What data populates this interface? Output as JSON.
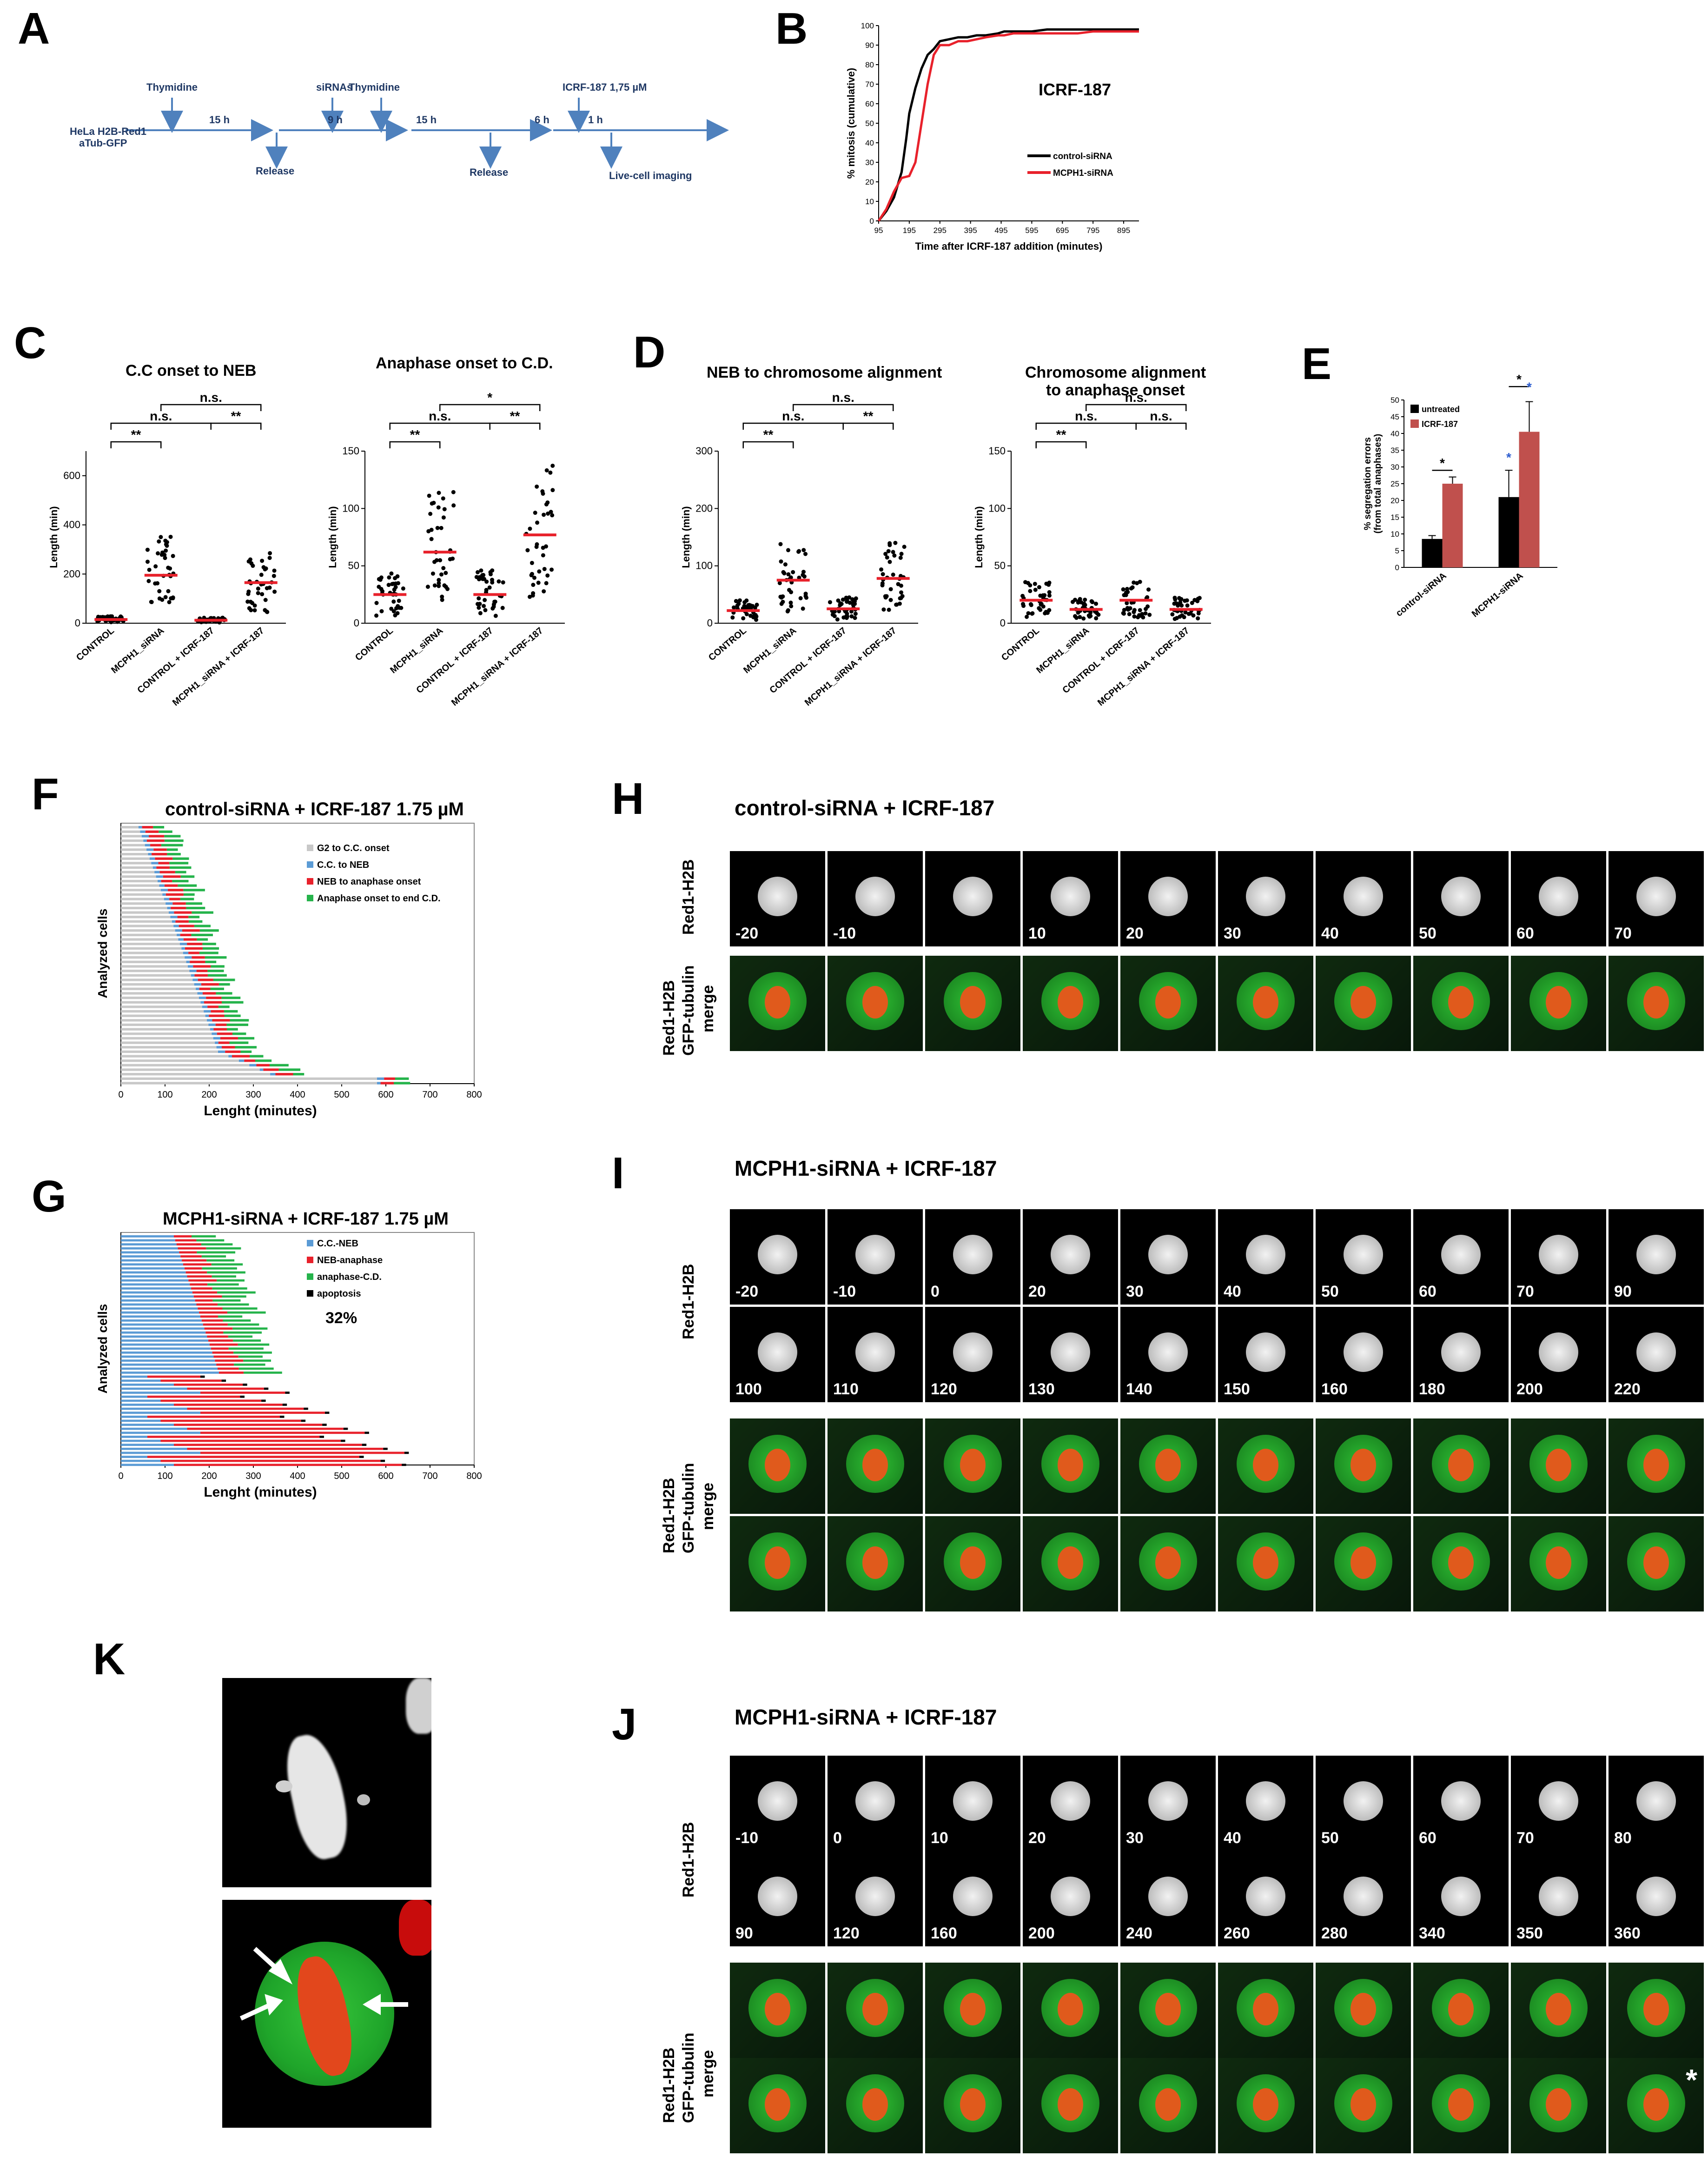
{
  "panel_labels": {
    "A": "A",
    "B": "B",
    "C": "C",
    "D": "D",
    "E": "E",
    "F": "F",
    "G": "G",
    "H": "H",
    "I": "I",
    "J": "J",
    "K": "K"
  },
  "panelA": {
    "cells": "HeLa H2B-Red1",
    "cells2": "aTub-GFP",
    "thymidine1": "Thymidine",
    "h15a": "15 h",
    "release1": "Release",
    "sirnas": "siRNAs",
    "h9": "9 h",
    "thymidine2": "Thymidine",
    "h15b": "15 h",
    "release2": "Release",
    "h6": "6 h",
    "icrf": "ICRF-187 1,75 µM",
    "h1": "1 h",
    "imaging": "Live-cell imaging"
  },
  "panelC": {
    "title1": "C.C onset to NEB",
    "title2": "Anaphase onset to C.D.",
    "ylabel": "Length (min)",
    "sig_ns": "n.s.",
    "sig_1": "*",
    "sig_2": "**"
  },
  "panelD": {
    "title1": "NEB to chromosome alignment",
    "title2": "Chromosome alignment",
    "title2b": "to anaphase onset",
    "ylabel": "Length (min)"
  },
  "panelE": {
    "ylabel": "% segregation errors",
    "ylabel2": "(from total anaphases)"
  },
  "panelF": {
    "title": "control-siRNA + ICRF-187 1.75 µM",
    "ylabel": "Analyzed cells",
    "xlabel": "Lenght (minutes)",
    "legend": [
      "G2 to C.C. onset",
      "C.C. to NEB",
      "NEB to anaphase onset",
      "Anaphase onset to end C.D."
    ]
  },
  "panelG": {
    "title": "MCPH1-siRNA + ICRF-187 1.75 µM",
    "ylabel": "Analyzed cells",
    "xlabel": "Lenght (minutes)",
    "legend": [
      "C.C.-NEB",
      "NEB-anaphase",
      "anaphase-C.D.",
      "apoptosis"
    ],
    "percent": "32%"
  },
  "panelH": {
    "title": "control-siRNA + ICRF-187",
    "row1": "Red1-H2B",
    "row2a": "Red1-H2B",
    "row2b": "GFP-tubulin",
    "row2c": "merge",
    "times": [
      "-20",
      "-10",
      "",
      "10",
      "20",
      "30",
      "40",
      "50",
      "60",
      "70"
    ]
  },
  "panelI": {
    "title": "MCPH1-siRNA + ICRF-187",
    "row1": "Red1-H2B",
    "row2a": "Red1-H2B",
    "row2b": "GFP-tubulin",
    "row2c": "merge",
    "times1": [
      "-20",
      "-10",
      "0",
      "20",
      "30",
      "40",
      "50",
      "60",
      "70",
      "90"
    ],
    "times2": [
      "100",
      "110",
      "120",
      "130",
      "140",
      "150",
      "160",
      "180",
      "200",
      "220"
    ]
  },
  "panelJ": {
    "title": "MCPH1-siRNA + ICRF-187",
    "row1": "Red1-H2B",
    "row2a": "Red1-H2B",
    "row2b": "GFP-tubulin",
    "row2c": "merge",
    "times1": [
      "-10",
      "0",
      "10",
      "20",
      "30",
      "40",
      "50",
      "60",
      "70",
      "80"
    ],
    "times2": [
      "90",
      "120",
      "160",
      "200",
      "240",
      "260",
      "280",
      "340",
      "350",
      "360"
    ],
    "asterisk": "*"
  },
  "colors": {
    "red": "#e8212b",
    "black": "#000000",
    "blue": "#5b9bd5",
    "green": "#25b34b",
    "grey": "#c8c8c8",
    "bar_red": "#c0504d",
    "arrow_blue": "#4f81bd"
  },
  "chart_data": [
    {
      "id": "B",
      "type": "line",
      "title": "ICRF-187",
      "xlabel": "Time after ICRF-187 addition (minutes)",
      "ylabel": "% mitosis (cumulative)",
      "xticks": [
        95,
        195,
        295,
        395,
        495,
        595,
        695,
        795,
        895
      ],
      "yticks": [
        0,
        10,
        20,
        30,
        40,
        50,
        60,
        70,
        80,
        90,
        100
      ],
      "xlim": [
        95,
        945
      ],
      "ylim": [
        0,
        100
      ],
      "series": [
        {
          "name": "control-siRNA",
          "color": "#000000",
          "x": [
            95,
            120,
            145,
            170,
            185,
            195,
            215,
            235,
            255,
            275,
            295,
            325,
            355,
            385,
            415,
            445,
            485,
            505,
            535,
            595,
            645,
            695,
            745,
            795,
            845,
            895,
            945
          ],
          "y": [
            0,
            5,
            12,
            25,
            42,
            55,
            68,
            78,
            85,
            88,
            92,
            93,
            94,
            94,
            95,
            95,
            96,
            97,
            97,
            97,
            98,
            98,
            98,
            98,
            98,
            98,
            98
          ]
        },
        {
          "name": "MCPH1-siRNA",
          "color": "#e8212b",
          "x": [
            95,
            120,
            145,
            170,
            195,
            215,
            235,
            255,
            275,
            295,
            325,
            355,
            385,
            415,
            445,
            485,
            505,
            535,
            595,
            645,
            695,
            745,
            795,
            845,
            895,
            945
          ],
          "y": [
            0,
            6,
            15,
            22,
            23,
            30,
            50,
            70,
            85,
            90,
            90,
            92,
            92,
            93,
            94,
            95,
            95,
            96,
            96,
            96,
            96,
            96,
            97,
            97,
            97,
            97
          ]
        }
      ]
    },
    {
      "id": "C1",
      "type": "scatter",
      "title": "C.C onset to NEB",
      "ylabel": "Length (min)",
      "categories": [
        "CONTROL",
        "MCPH1_siRNA",
        "CONTROL + ICRF-187",
        "MCPH1_siRNA + ICRF-187"
      ],
      "yticks": [
        0,
        200,
        400,
        600
      ],
      "ylim": [
        0,
        700
      ],
      "medians": [
        15,
        195,
        12,
        165
      ],
      "significance": [
        {
          "from": 0,
          "to": 1,
          "label": "**"
        },
        {
          "from": 0,
          "to": 2,
          "label": "n.s."
        },
        {
          "from": 1,
          "to": 3,
          "label": "n.s."
        },
        {
          "from": 2,
          "to": 3,
          "label": "**"
        }
      ]
    },
    {
      "id": "C2",
      "type": "scatter",
      "title": "Anaphase onset to C.D.",
      "ylabel": "Length (min)",
      "categories": [
        "CONTROL",
        "MCPH1_siRNA",
        "CONTROL + ICRF-187",
        "MCPH1_siRNA + ICRF-187"
      ],
      "yticks": [
        0,
        50,
        100,
        150
      ],
      "ylim": [
        0,
        150
      ],
      "medians": [
        25,
        62,
        25,
        77
      ],
      "significance": [
        {
          "from": 0,
          "to": 1,
          "label": "**"
        },
        {
          "from": 0,
          "to": 2,
          "label": "n.s."
        },
        {
          "from": 1,
          "to": 3,
          "label": "*"
        },
        {
          "from": 2,
          "to": 3,
          "label": "**"
        }
      ]
    },
    {
      "id": "D1",
      "type": "scatter",
      "title": "NEB to chromosome alignment",
      "ylabel": "Length (min)",
      "categories": [
        "CONTROL",
        "MCPH1_siRNA",
        "CONTROL + ICRF-187",
        "MCPH1_siRNA + ICRF-187"
      ],
      "yticks": [
        0,
        100,
        200,
        300
      ],
      "ylim": [
        0,
        300
      ],
      "medians": [
        22,
        75,
        25,
        78
      ],
      "significance": [
        {
          "from": 0,
          "to": 1,
          "label": "**"
        },
        {
          "from": 0,
          "to": 2,
          "label": "n.s."
        },
        {
          "from": 1,
          "to": 3,
          "label": "n.s."
        },
        {
          "from": 2,
          "to": 3,
          "label": "**"
        }
      ]
    },
    {
      "id": "D2",
      "type": "scatter",
      "title": "Chromosome alignment to anaphase onset",
      "ylabel": "Length (min)",
      "categories": [
        "CONTROL",
        "MCPH1_siRNA",
        "CONTROL + ICRF-187",
        "MCPH1_siRNA + ICRF-187"
      ],
      "yticks": [
        0,
        50,
        100,
        150
      ],
      "ylim": [
        0,
        150
      ],
      "medians": [
        20,
        12,
        20,
        12
      ],
      "significance": [
        {
          "from": 0,
          "to": 1,
          "label": "**"
        },
        {
          "from": 0,
          "to": 2,
          "label": "n.s."
        },
        {
          "from": 1,
          "to": 3,
          "label": "n.s."
        },
        {
          "from": 2,
          "to": 3,
          "label": "n.s."
        }
      ]
    },
    {
      "id": "E",
      "type": "bar",
      "ylabel": "% segregation errors (from total anaphases)",
      "categories": [
        "control-siRNA",
        "MCPH1-siRNA"
      ],
      "yticks": [
        0,
        5,
        10,
        15,
        20,
        25,
        30,
        35,
        40,
        45,
        50
      ],
      "ylim": [
        0,
        50
      ],
      "series": [
        {
          "name": "untreated",
          "color": "#000000",
          "values": [
            8.5,
            21
          ],
          "errors": [
            1,
            8
          ]
        },
        {
          "name": "ICRF-187",
          "color": "#c0504d",
          "values": [
            25,
            40.5
          ],
          "errors": [
            2,
            9
          ]
        }
      ],
      "significance_labels": [
        "*",
        "*",
        "*",
        "*"
      ]
    },
    {
      "id": "F",
      "type": "bar",
      "title": "control-siRNA + ICRF-187 1.75 µM",
      "xlabel": "Lenght (minutes)",
      "ylabel": "Analyzed cells",
      "xticks": [
        0,
        100,
        200,
        300,
        400,
        500,
        600,
        700,
        800
      ],
      "xlim": [
        0,
        800
      ],
      "stacked_horizontal": true,
      "series_names": [
        "G2 to C.C. onset",
        "C.C. to NEB",
        "NEB to anaphase onset",
        "Anaphase onset to end C.D."
      ]
    },
    {
      "id": "G",
      "type": "bar",
      "title": "MCPH1-siRNA + ICRF-187 1.75 µM",
      "xlabel": "Lenght (minutes)",
      "ylabel": "Analyzed cells",
      "xticks": [
        0,
        100,
        200,
        300,
        400,
        500,
        600,
        700,
        800
      ],
      "xlim": [
        0,
        800
      ],
      "stacked_horizontal": true,
      "series_names": [
        "C.C.-NEB",
        "NEB-anaphase",
        "anaphase-C.D.",
        "apoptosis"
      ]
    }
  ]
}
